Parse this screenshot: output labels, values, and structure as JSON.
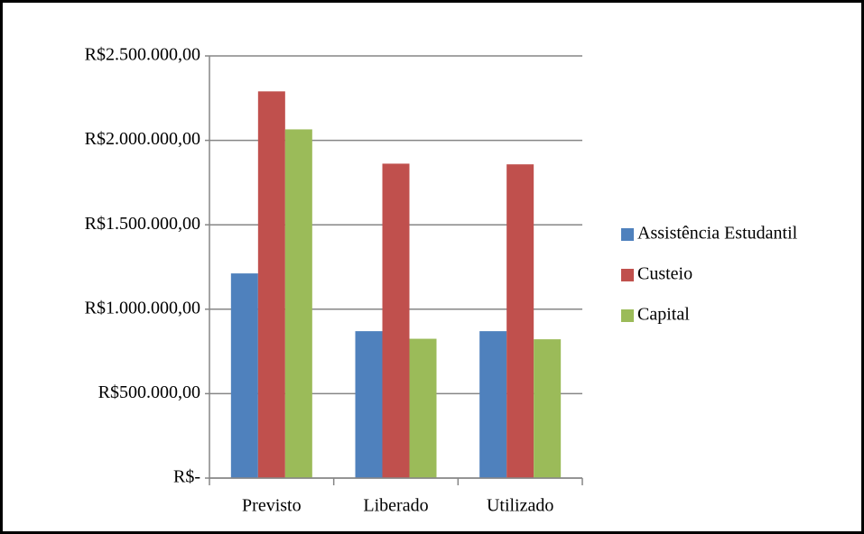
{
  "chart_data": {
    "type": "bar",
    "categories": [
      "Previsto",
      "Liberado",
      "Utilizado"
    ],
    "series": [
      {
        "name": "Assistência Estudantil",
        "color": "#4f81bd",
        "values": [
          1212000,
          870000,
          870000
        ]
      },
      {
        "name": "Custeio",
        "color": "#c0504d",
        "values": [
          2290000,
          1862000,
          1858000
        ]
      },
      {
        "name": "Capital",
        "color": "#9bbb59",
        "values": [
          2065000,
          825000,
          822000
        ]
      }
    ],
    "ylim": [
      0,
      2500000
    ],
    "yticks": [
      {
        "value": 0,
        "label": "R$-"
      },
      {
        "value": 500000,
        "label": "R$500.000,00"
      },
      {
        "value": 1000000,
        "label": "R$1.000.000,00"
      },
      {
        "value": 1500000,
        "label": "R$1.500.000,00"
      },
      {
        "value": 2000000,
        "label": "R$2.000.000,00"
      },
      {
        "value": 2500000,
        "label": "R$2.500.000,00"
      }
    ],
    "grid": true,
    "legend": "right"
  }
}
